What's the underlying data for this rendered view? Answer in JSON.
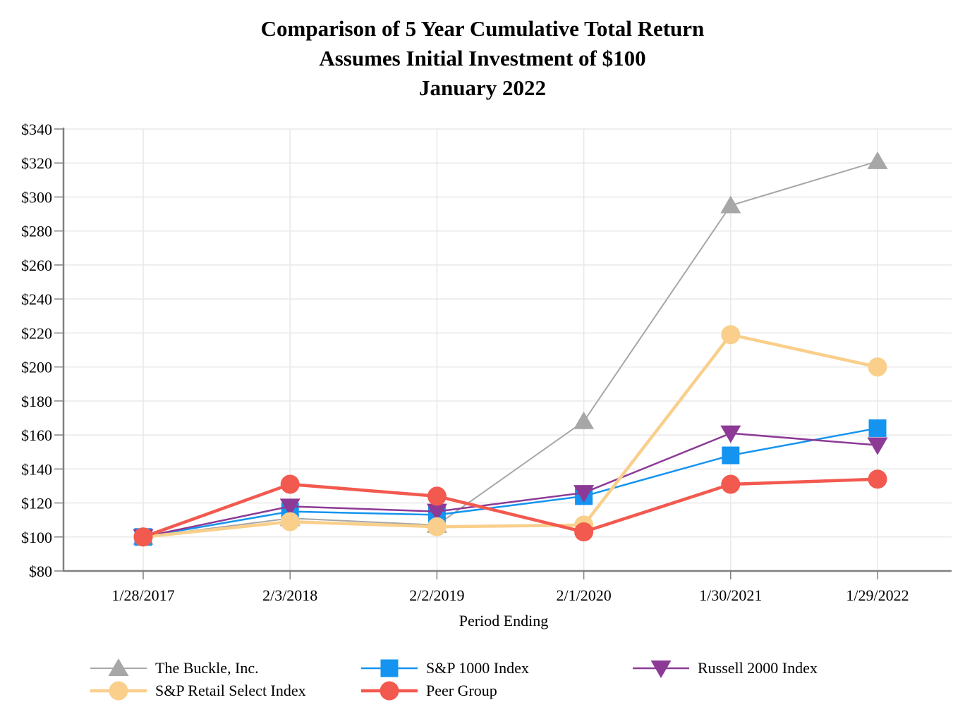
{
  "title": {
    "line1": "Comparison of 5 Year Cumulative Total Return",
    "line2": "Assumes Initial Investment of $100",
    "line3": "January 2022"
  },
  "chart_data": {
    "type": "line",
    "title": "Comparison of 5 Year Cumulative Total Return — Assumes Initial Investment of $100 — January 2022",
    "xlabel": "Period Ending",
    "ylabel": "",
    "categories": [
      "1/28/2017",
      "2/3/2018",
      "2/2/2019",
      "2/1/2020",
      "1/30/2021",
      "1/29/2022"
    ],
    "series": [
      {
        "name": "The Buckle, Inc.",
        "color": "#a7a7a7",
        "marker": "triangle-up",
        "line_width": 2,
        "values": [
          100,
          111,
          107,
          168,
          295,
          321
        ]
      },
      {
        "name": "S&P 1000 Index",
        "color": "#1494f0",
        "marker": "square",
        "line_width": 2.5,
        "values": [
          100,
          115,
          113,
          124,
          148,
          164
        ]
      },
      {
        "name": "Russell 2000 Index",
        "color": "#8c3a96",
        "marker": "triangle-down",
        "line_width": 2.5,
        "values": [
          100,
          118,
          115,
          126,
          161,
          154
        ]
      },
      {
        "name": "S&P Retail Select Index",
        "color": "#f9cf8b",
        "marker": "circle",
        "line_width": 4.5,
        "values": [
          100,
          109,
          106,
          107,
          219,
          200
        ]
      },
      {
        "name": "Peer Group",
        "color": "#f2594f",
        "marker": "circle",
        "line_width": 4.5,
        "values": [
          100,
          131,
          124,
          103,
          131,
          134
        ]
      }
    ],
    "y_axis": {
      "min": 80,
      "max": 340,
      "step": 20,
      "prefix": "$"
    },
    "grid": true,
    "legend_position": "bottom"
  },
  "colors": {
    "axis": "#808080",
    "gridline": "#e8e8e8",
    "text": "#000000"
  }
}
